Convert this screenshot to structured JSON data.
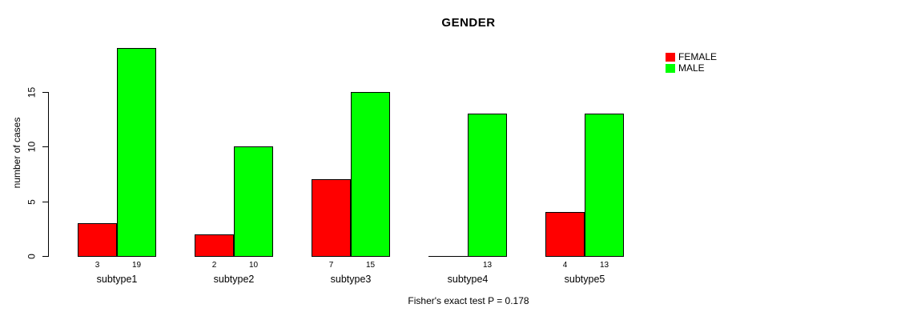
{
  "chart_data": {
    "type": "bar",
    "title": "GENDER",
    "ylabel": "number of cases",
    "footnote": "Fisher's exact test P = 0.178",
    "categories": [
      "subtype1",
      "subtype2",
      "subtype3",
      "subtype4",
      "subtype5"
    ],
    "series": [
      {
        "name": "FEMALE",
        "color": "#ff0000",
        "values": [
          3,
          2,
          7,
          0,
          4
        ],
        "bar_labels": [
          "3",
          "2",
          "7",
          "",
          "4"
        ]
      },
      {
        "name": "MALE",
        "color": "#00ff00",
        "values": [
          19,
          10,
          15,
          13,
          13
        ],
        "bar_labels": [
          "19",
          "10",
          "15",
          "13",
          "13"
        ]
      }
    ],
    "yticks": [
      0,
      5,
      10,
      15
    ],
    "ylim": [
      0,
      19
    ],
    "grid": false,
    "legend_position": "right",
    "background_color": "#ffffff",
    "text_color": "#000000"
  }
}
